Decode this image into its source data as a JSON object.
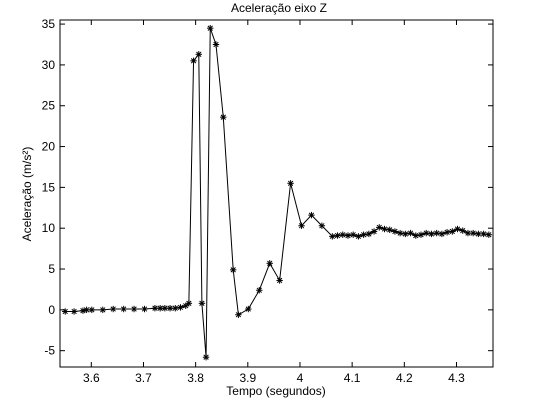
{
  "chart_data": {
    "type": "line",
    "title": "Aceleração eixo Z",
    "xlabel": "Tempo (segundos)",
    "ylabel": "Aceleração (m/s²)",
    "xlim": [
      3.54,
      4.37
    ],
    "ylim": [
      -7,
      35.5
    ],
    "xticks": [
      3.6,
      3.7,
      3.8,
      3.9,
      4.0,
      4.1,
      4.2,
      4.3
    ],
    "xtick_labels": [
      "3.6",
      "3.7",
      "3.8",
      "3.9",
      "4",
      "4.1",
      "4.2",
      "4.3"
    ],
    "yticks": [
      -5,
      0,
      5,
      10,
      15,
      20,
      25,
      30,
      35
    ],
    "ytick_labels": [
      "-5",
      "0",
      "5",
      "10",
      "15",
      "20",
      "25",
      "30",
      "35"
    ],
    "grid": false,
    "marker": "asterisk",
    "line_color": "#000000",
    "series": [
      {
        "name": "",
        "x": [
          3.55,
          3.567,
          3.584,
          3.591,
          3.601,
          3.622,
          3.642,
          3.662,
          3.682,
          3.702,
          3.722,
          3.732,
          3.741,
          3.751,
          3.761,
          3.771,
          3.781,
          3.787,
          3.796,
          3.806,
          3.812,
          3.82,
          3.828,
          3.839,
          3.853,
          3.872,
          3.882,
          3.901,
          3.922,
          3.942,
          3.961,
          3.982,
          4.003,
          4.022,
          4.042,
          4.062,
          4.072,
          4.082,
          4.092,
          4.102,
          4.112,
          4.122,
          4.132,
          4.142,
          4.152,
          4.162,
          4.172,
          4.182,
          4.192,
          4.202,
          4.212,
          4.222,
          4.232,
          4.242,
          4.252,
          4.262,
          4.272,
          4.282,
          4.292,
          4.302,
          4.312,
          4.322,
          4.332,
          4.342,
          4.352,
          4.362
        ],
        "y": [
          -0.2,
          -0.2,
          -0.1,
          0.0,
          0.0,
          0.0,
          0.1,
          0.1,
          0.1,
          0.1,
          0.2,
          0.2,
          0.2,
          0.2,
          0.2,
          0.3,
          0.5,
          0.8,
          30.5,
          31.3,
          0.8,
          -5.8,
          34.5,
          32.5,
          23.6,
          4.9,
          -0.6,
          0.1,
          2.4,
          5.7,
          3.6,
          15.5,
          10.3,
          11.6,
          10.3,
          9.0,
          9.1,
          9.2,
          9.1,
          9.2,
          9.0,
          9.2,
          9.3,
          9.6,
          10.1,
          9.9,
          9.8,
          9.6,
          9.4,
          9.3,
          9.4,
          9.1,
          9.2,
          9.4,
          9.3,
          9.4,
          9.3,
          9.5,
          9.6,
          9.9,
          9.7,
          9.4,
          9.4,
          9.3,
          9.3,
          9.2
        ]
      }
    ]
  }
}
